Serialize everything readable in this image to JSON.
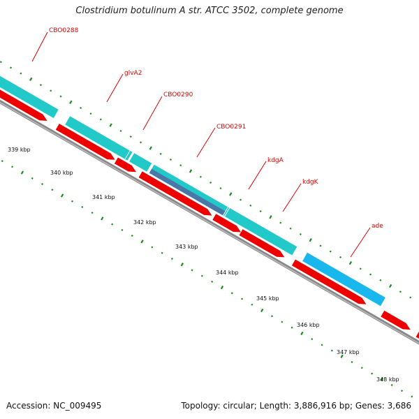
{
  "title": "Clostridium botulinum A str. ATCC 3502, complete genome",
  "footer": {
    "accession": "Accession: NC_009495",
    "summary": "Topology: circular; Length: 3,886,916 bp; Genes: 3,686"
  },
  "colors": {
    "cds_forward": "#22c9c9",
    "cds_red": "#ee0000",
    "cds_blue": "#18b8ee",
    "cds_gray_blue": "#4a77a8",
    "backbone": "#888888",
    "ticks": "#1e8a1e",
    "labels": "#e00000"
  },
  "scale_labels": [
    "339 kbp",
    "340 kbp",
    "341 kbp",
    "342 kbp",
    "343 kbp",
    "344 kbp",
    "345 kbp",
    "346 kbp",
    "347 kbp",
    "348 kbp"
  ],
  "gene_labels": [
    "CBO0288",
    "glvA2",
    "CBO0290",
    "CBO0291",
    "kdgA",
    "kdgK",
    "ade"
  ]
}
